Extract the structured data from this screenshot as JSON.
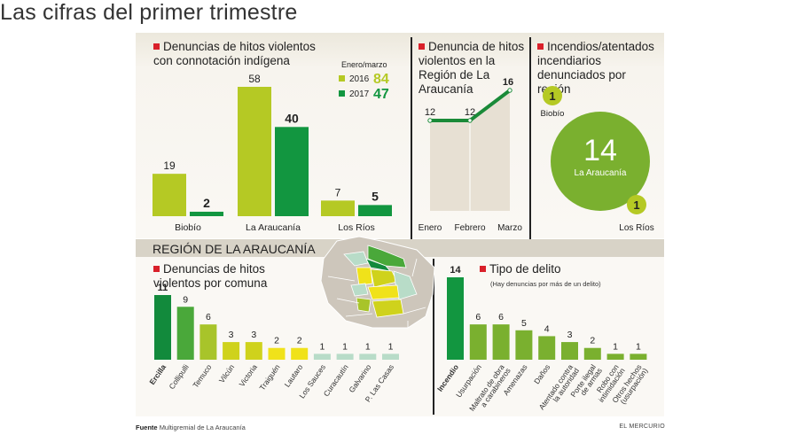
{
  "title": "Las cifras del primer trimestre",
  "colors": {
    "y2016": "#b5c924",
    "y2017": "#129640",
    "line": "#1a8a38",
    "area": "#e7e0d3",
    "bubble": "#7ab02f",
    "bubble_small": "#b5c924",
    "accent_red": "#d9202a"
  },
  "chart_data": [
    {
      "id": "indigena",
      "type": "bar",
      "title": "Denuncias de hitos violentos con connotación indígena",
      "legend_title": "Enero/marzo",
      "legend": [
        {
          "name": "2016",
          "total": "84"
        },
        {
          "name": "2017",
          "total": "47"
        }
      ],
      "categories": [
        "Biobío",
        "La Araucanía",
        "Los Ríos"
      ],
      "series": [
        {
          "name": "2016",
          "values": [
            19,
            58,
            7
          ]
        },
        {
          "name": "2017",
          "values": [
            2,
            40,
            5
          ]
        }
      ],
      "xlabel": "",
      "ylabel": "",
      "ylim": [
        0,
        58
      ]
    },
    {
      "id": "region",
      "type": "area",
      "title": "Denuncia de hitos violentos en la Región de La Araucanía",
      "x": [
        "Enero",
        "Febrero",
        "Marzo"
      ],
      "values": [
        12,
        12,
        16
      ],
      "ylim": [
        0,
        16
      ]
    },
    {
      "id": "incendios",
      "type": "bubble",
      "title": "Incendios/atentados incendiarios denunciados por región",
      "items": [
        {
          "label": "Biobío",
          "value": 1
        },
        {
          "label": "La Araucanía",
          "value": 14
        },
        {
          "label": "Los Ríos",
          "value": 1
        }
      ]
    },
    {
      "id": "comuna",
      "type": "bar",
      "title": "Denuncias de hitos violentos por comuna",
      "categories": [
        "Ercilla",
        "Collipulli",
        "Temuco",
        "Vilcún",
        "Victoria",
        "Traiguén",
        "Lautaro",
        "Los Sauces",
        "Curacautín",
        "Galvarino",
        "P. Las Casas"
      ],
      "values": [
        11,
        9,
        6,
        3,
        3,
        2,
        2,
        1,
        1,
        1,
        1
      ],
      "bar_colors": [
        "#128a3c",
        "#4aa83a",
        "#a8c42a",
        "#cfd21c",
        "#cfd21c",
        "#f0e21a",
        "#f0e21a",
        "#b8dcc8",
        "#b8dcc8",
        "#b8dcc8",
        "#b8dcc8"
      ],
      "ylim": [
        0,
        11
      ]
    },
    {
      "id": "delito",
      "type": "bar",
      "title": "Tipo de delito",
      "subtitle": "(Hay denuncias por más de un delito)",
      "categories": [
        "Incendio",
        "Usurpación",
        "Maltrato de obra a carabineros",
        "Amenazas",
        "Daños",
        "Atentado contra la autoridad",
        "Porte ilegal de armas",
        "Robo con intimidación",
        "Otros hechos (usurpación)"
      ],
      "category_lines": [
        [
          "Incendio"
        ],
        [
          "Usurpación"
        ],
        [
          "Maltrato de obra",
          "a carabineros"
        ],
        [
          "Amenazas"
        ],
        [
          "Daños"
        ],
        [
          "Atentado contra",
          "la autoridad"
        ],
        [
          "Porte ilegal",
          "de armas"
        ],
        [
          "Robo con",
          "intimidación"
        ],
        [
          "Otros hechos",
          "(usurpación)"
        ]
      ],
      "values": [
        14,
        6,
        6,
        5,
        4,
        3,
        2,
        1,
        1
      ],
      "bar_colors": [
        "#129640",
        "#7ab02f",
        "#7ab02f",
        "#7ab02f",
        "#7ab02f",
        "#7ab02f",
        "#7ab02f",
        "#7ab02f",
        "#7ab02f"
      ],
      "ylim": [
        0,
        14
      ]
    }
  ],
  "region_section": {
    "title": "REGIÓN DE LA ARAUCANÍA"
  },
  "footer": {
    "source_label": "Fuente",
    "source_text": "Multigremial de La Araucanía",
    "brand": "EL MERCURIO"
  }
}
